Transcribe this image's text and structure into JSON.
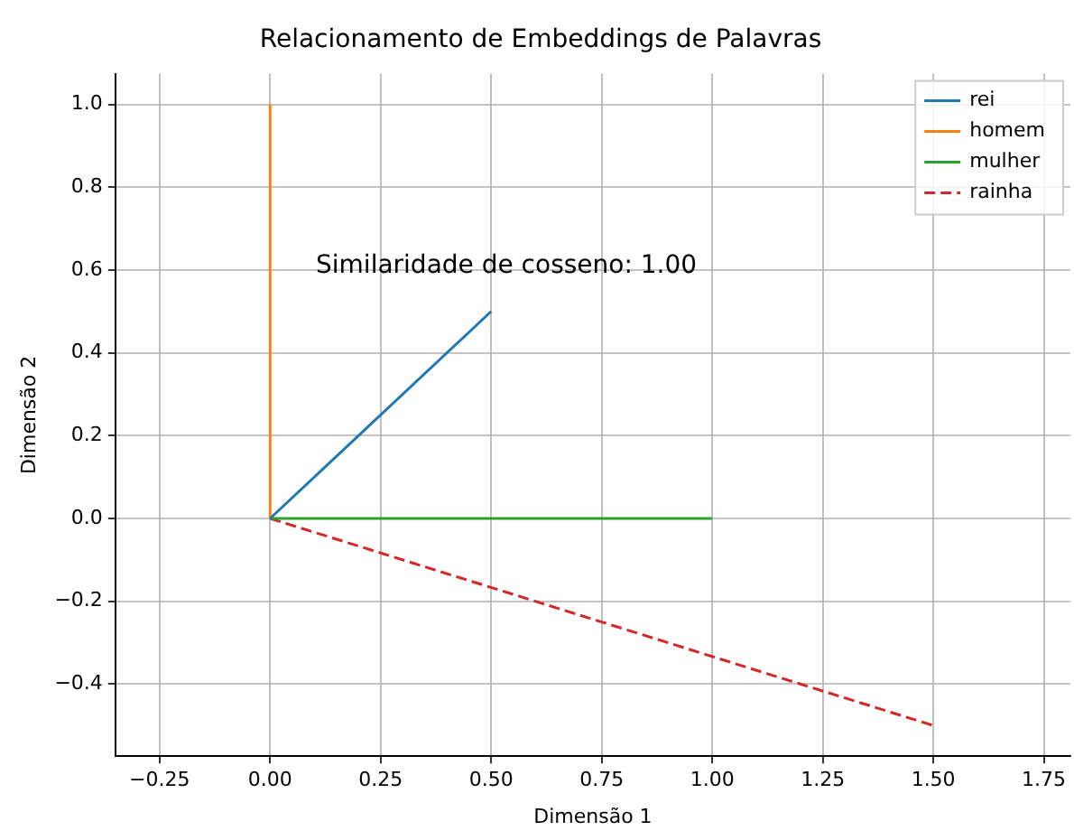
{
  "chart_data": {
    "type": "line",
    "title": "Relacionamento de Embeddings de Palavras",
    "xlabel": "Dimensão 1",
    "ylabel": "Dimensão 2",
    "xlim": [
      -0.35,
      1.81
    ],
    "xticks": [
      {
        "value": -0.25,
        "label": "−0.25"
      },
      {
        "value": 0,
        "label": "0.00"
      },
      {
        "value": 0.25,
        "label": "0.25"
      },
      {
        "value": 0.5,
        "label": "0.50"
      },
      {
        "value": 0.75,
        "label": "0.75"
      },
      {
        "value": 1,
        "label": "1.00"
      },
      {
        "value": 1.25,
        "label": "1.25"
      },
      {
        "value": 1.5,
        "label": "1.50"
      },
      {
        "value": 1.75,
        "label": "1.75"
      }
    ],
    "ylim": [
      -0.574,
      1.074
    ],
    "yticks": [
      {
        "value": -0.4,
        "label": "−0.4"
      },
      {
        "value": -0.2,
        "label": "−0.2"
      },
      {
        "value": 0,
        "label": "0.0"
      },
      {
        "value": 0.2,
        "label": "0.2"
      },
      {
        "value": 0.4,
        "label": "0.4"
      },
      {
        "value": 0.6,
        "label": "0.6"
      },
      {
        "value": 0.8,
        "label": "0.8"
      },
      {
        "value": 1,
        "label": "1.0"
      }
    ],
    "series": [
      {
        "name": "rei",
        "color": "#1f77b4",
        "x": [
          0,
          0.5
        ],
        "values": [
          0,
          0.5
        ]
      },
      {
        "name": "homem",
        "color": "#ff7f0e",
        "x": [
          0,
          0
        ],
        "values": [
          0,
          1
        ]
      },
      {
        "name": "mulher",
        "color": "#2ca02c",
        "x": [
          0,
          1
        ],
        "values": [
          0,
          0
        ]
      },
      {
        "name": "rainha",
        "color": "#d62728",
        "x": [
          0,
          1.5
        ],
        "values": [
          0,
          -0.5
        ],
        "line_style": "dashed"
      }
    ],
    "annotations": [
      "Similaridade de cosseno: 1.00"
    ],
    "grid": true,
    "legend": "top right",
    "marker": "none"
  }
}
